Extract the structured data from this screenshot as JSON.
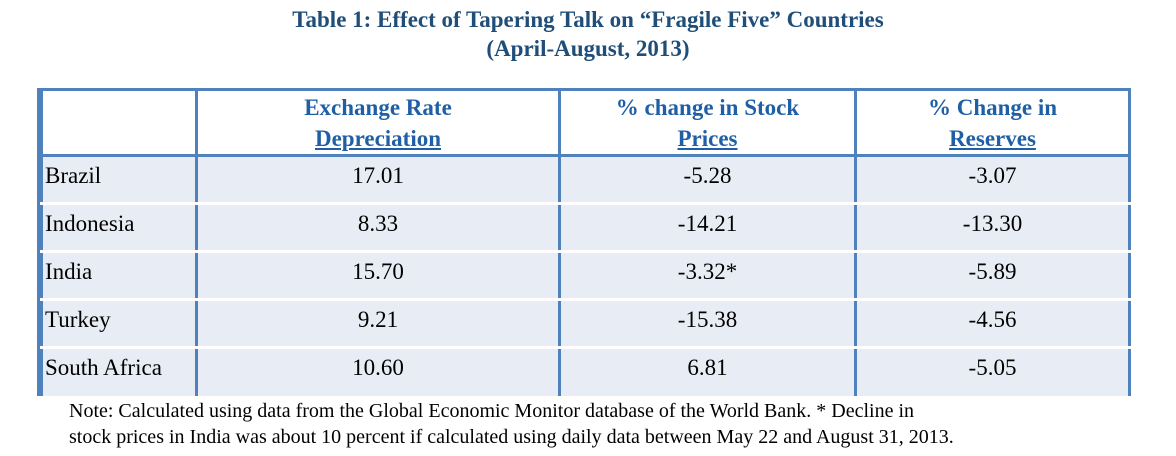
{
  "title": {
    "line1": "Table 1: Effect of Tapering Talk on “Fragile Five” Countries",
    "line2": "(April-August, 2013)"
  },
  "table": {
    "headers": [
      {
        "line1": "",
        "line2": ""
      },
      {
        "line1": "Exchange Rate",
        "line2": "Depreciation"
      },
      {
        "line1": "% change in Stock",
        "line2": "Prices"
      },
      {
        "line1": "% Change in",
        "line2": "Reserves"
      }
    ],
    "rows": [
      {
        "country": "Brazil",
        "exchange_rate_depreciation": "17.01",
        "stock_price_change": "-5.28",
        "reserves_change": "-3.07"
      },
      {
        "country": "Indonesia",
        "exchange_rate_depreciation": "8.33",
        "stock_price_change": "-14.21",
        "reserves_change": "-13.30"
      },
      {
        "country": "India",
        "exchange_rate_depreciation": "15.70",
        "stock_price_change": "-3.32*",
        "reserves_change": "-5.89"
      },
      {
        "country": "Turkey",
        "exchange_rate_depreciation": "9.21",
        "stock_price_change": "-15.38",
        "reserves_change": "-4.56"
      },
      {
        "country": "South Africa",
        "exchange_rate_depreciation": "10.60",
        "stock_price_change": "6.81",
        "reserves_change": "-5.05"
      }
    ]
  },
  "note": {
    "line1": "Note: Calculated using data from the Global Economic Monitor database of the World Bank. * Decline in",
    "line2": "stock prices in India was about 10 percent if calculated using daily data between May 22 and August 31, 2013."
  },
  "colors": {
    "title": "#1f4e79",
    "header_text": "#1f5fa6",
    "border": "#4f81bd",
    "row_fill": "#e8ecf4"
  }
}
